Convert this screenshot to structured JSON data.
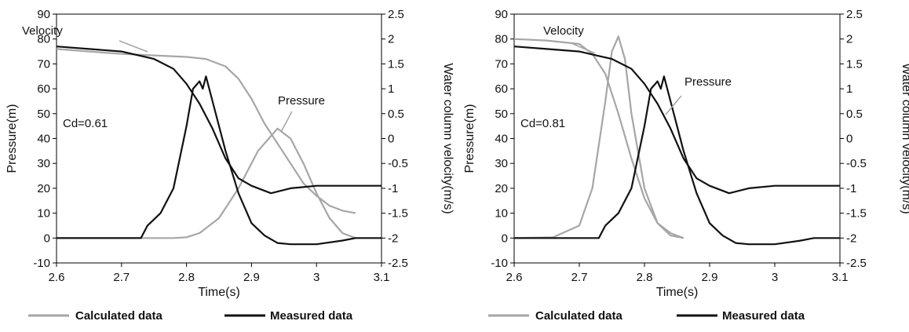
{
  "colors": {
    "calculated": "#a6a6a6",
    "measured": "#111111",
    "axis": "#000000"
  },
  "legend": {
    "calculated": "Calculated data",
    "measured": "Measured data",
    "placement": "bottom"
  },
  "chart_data": [
    {
      "type": "line",
      "xlabel": "Time(s)",
      "ylabel": "Pressure(m)",
      "y2label": "Water column velocity(m/s)",
      "xlim": [
        2.6,
        3.1
      ],
      "ylim": [
        -10,
        90
      ],
      "y2lim": [
        -2.5,
        2.5
      ],
      "x_ticks": [
        "2.6",
        "2.7",
        "2.8",
        "2.9",
        "3",
        "3.1"
      ],
      "y_ticks": [
        "-10",
        "0",
        "10",
        "20",
        "30",
        "40",
        "50",
        "60",
        "70",
        "80",
        "90"
      ],
      "y2_ticks": [
        "-2.5",
        "-2",
        "-1.5",
        "-1",
        "-0.5",
        "0",
        "0.5",
        "1",
        "1.5",
        "2",
        "2.5"
      ],
      "grid": false,
      "annotations": {
        "coef": "Cd=0.61",
        "velocity": "Velocity",
        "pressure": "Pressure"
      },
      "series": [
        {
          "name": "Calculated data",
          "quantity": "velocity",
          "axis": "right",
          "x": [
            2.6,
            2.65,
            2.7,
            2.75,
            2.8,
            2.83,
            2.86,
            2.88,
            2.9,
            2.92,
            2.94,
            2.96,
            2.98,
            3.0,
            3.02,
            3.04,
            3.06
          ],
          "y": [
            1.8,
            1.75,
            1.7,
            1.67,
            1.64,
            1.6,
            1.45,
            1.2,
            0.8,
            0.3,
            -0.1,
            -0.5,
            -0.9,
            -1.15,
            -1.35,
            -1.45,
            -1.5
          ]
        },
        {
          "name": "Calculated data",
          "quantity": "pressure",
          "axis": "left",
          "x": [
            2.6,
            2.78,
            2.8,
            2.82,
            2.85,
            2.88,
            2.91,
            2.94,
            2.96,
            2.98,
            3.0,
            3.02,
            3.04,
            3.06
          ],
          "y": [
            0,
            0,
            0.3,
            2,
            8,
            20,
            35,
            44,
            40,
            30,
            18,
            8,
            2,
            0
          ]
        },
        {
          "name": "Measured data",
          "quantity": "velocity",
          "axis": "right",
          "x": [
            2.6,
            2.65,
            2.7,
            2.75,
            2.78,
            2.8,
            2.82,
            2.84,
            2.86,
            2.88,
            2.9,
            2.93,
            2.96,
            3.0,
            3.05,
            3.1
          ],
          "y": [
            1.85,
            1.8,
            1.75,
            1.6,
            1.4,
            1.1,
            0.7,
            0.2,
            -0.4,
            -0.8,
            -0.95,
            -1.1,
            -1.0,
            -0.95,
            -0.95,
            -0.95
          ]
        },
        {
          "name": "Measured data",
          "quantity": "pressure",
          "axis": "left",
          "x": [
            2.6,
            2.73,
            2.74,
            2.76,
            2.78,
            2.8,
            2.81,
            2.82,
            2.825,
            2.83,
            2.84,
            2.86,
            2.88,
            2.9,
            2.92,
            2.94,
            2.96,
            3.0,
            3.04,
            3.06,
            3.1
          ],
          "y": [
            0,
            0,
            5,
            10,
            20,
            45,
            60,
            63,
            60,
            65,
            55,
            35,
            18,
            6,
            1,
            -2,
            -2.5,
            -2.5,
            -1,
            0,
            0
          ]
        }
      ]
    },
    {
      "type": "line",
      "xlabel": "Time(s)",
      "ylabel": "Pressure(m)",
      "y2label": "Water column velocity(m/s)",
      "xlim": [
        2.6,
        3.1
      ],
      "ylim": [
        -10,
        90
      ],
      "y2lim": [
        -2.5,
        2.5
      ],
      "x_ticks": [
        "2.6",
        "2.7",
        "2.8",
        "2.9",
        "3",
        "3.1"
      ],
      "y_ticks": [
        "-10",
        "0",
        "10",
        "20",
        "30",
        "40",
        "50",
        "60",
        "70",
        "80",
        "90"
      ],
      "y2_ticks": [
        "-2.5",
        "-2",
        "-1.5",
        "-1",
        "-0.5",
        "0",
        "0.5",
        "1",
        "1.5",
        "2",
        "2.5"
      ],
      "grid": false,
      "annotations": {
        "coef": "Cd=0.81",
        "velocity": "Velocity",
        "pressure": "Pressure"
      },
      "series": [
        {
          "name": "Calculated data",
          "quantity": "velocity",
          "axis": "right",
          "x": [
            2.6,
            2.65,
            2.7,
            2.72,
            2.74,
            2.76,
            2.78,
            2.8,
            2.82,
            2.84,
            2.86
          ],
          "y": [
            2.0,
            1.97,
            1.9,
            1.7,
            1.3,
            0.5,
            -0.4,
            -1.2,
            -1.7,
            -1.9,
            -2.0
          ]
        },
        {
          "name": "Calculated data",
          "quantity": "pressure",
          "axis": "left",
          "x": [
            2.6,
            2.66,
            2.7,
            2.72,
            2.74,
            2.75,
            2.76,
            2.77,
            2.78,
            2.8,
            2.82,
            2.84,
            2.86
          ],
          "y": [
            0,
            0.3,
            5,
            20,
            55,
            75,
            81,
            72,
            50,
            20,
            6,
            1,
            0
          ]
        },
        {
          "name": "Measured data",
          "quantity": "velocity",
          "axis": "right",
          "x": [
            2.6,
            2.65,
            2.7,
            2.75,
            2.78,
            2.8,
            2.82,
            2.84,
            2.86,
            2.88,
            2.9,
            2.93,
            2.96,
            3.0,
            3.05,
            3.1
          ],
          "y": [
            1.85,
            1.8,
            1.75,
            1.6,
            1.4,
            1.1,
            0.7,
            0.2,
            -0.4,
            -0.8,
            -0.95,
            -1.1,
            -1.0,
            -0.95,
            -0.95,
            -0.95
          ]
        },
        {
          "name": "Measured data",
          "quantity": "pressure",
          "axis": "left",
          "x": [
            2.6,
            2.73,
            2.74,
            2.76,
            2.78,
            2.8,
            2.81,
            2.82,
            2.825,
            2.83,
            2.84,
            2.86,
            2.88,
            2.9,
            2.92,
            2.94,
            2.96,
            3.0,
            3.04,
            3.06,
            3.1
          ],
          "y": [
            0,
            0,
            5,
            10,
            20,
            45,
            60,
            63,
            60,
            65,
            55,
            35,
            18,
            6,
            1,
            -2,
            -2.5,
            -2.5,
            -1,
            0,
            0
          ]
        }
      ]
    }
  ]
}
